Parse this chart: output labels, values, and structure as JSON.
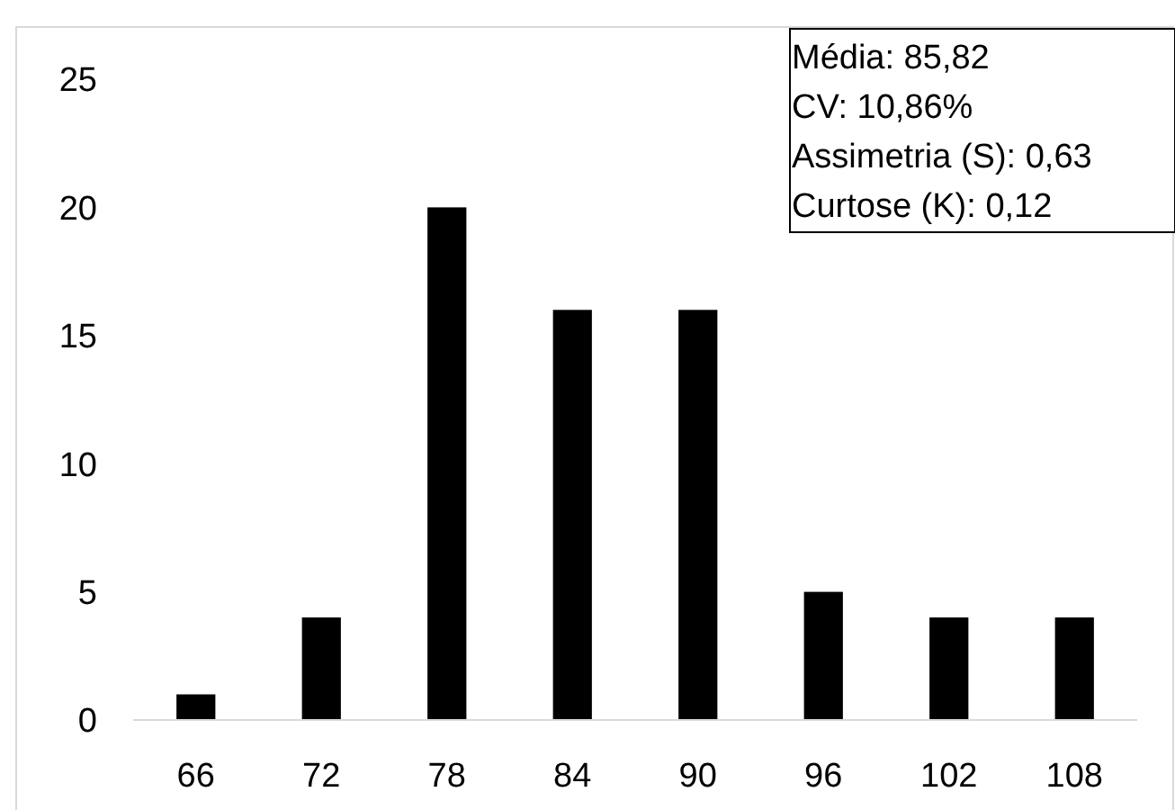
{
  "chart_data": {
    "type": "bar",
    "categories": [
      "66",
      "72",
      "78",
      "84",
      "90",
      "96",
      "102",
      "108"
    ],
    "values": [
      1,
      4,
      20,
      16,
      16,
      5,
      4,
      4
    ],
    "color": "#000000",
    "ylim": [
      0,
      25
    ],
    "yticks": [
      0,
      5,
      10,
      15,
      20,
      25
    ],
    "grid": false,
    "annotations": [
      "Média: 85,82\nCV: 10,86%\nAssimetria (S): 0,63\nCurtose (K): 0,12"
    ]
  }
}
